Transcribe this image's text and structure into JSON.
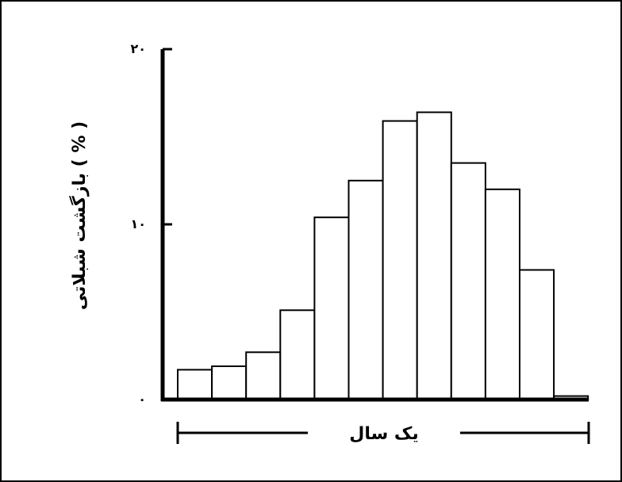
{
  "chart_data": {
    "type": "bar",
    "title": "",
    "ylabel": "بازگشت شبلاتی ( % )",
    "xlabel": "یک سال",
    "ylim": [
      0,
      20
    ],
    "yticks": [
      {
        "value": 0,
        "label": "۰"
      },
      {
        "value": 10,
        "label": "۱۰"
      },
      {
        "value": 20,
        "label": "۲۰"
      }
    ],
    "values": [
      1.7,
      1.9,
      2.7,
      5.1,
      10.4,
      12.5,
      15.9,
      16.4,
      13.5,
      12.0,
      7.4,
      0.2
    ],
    "grid": false,
    "legend": "none"
  }
}
